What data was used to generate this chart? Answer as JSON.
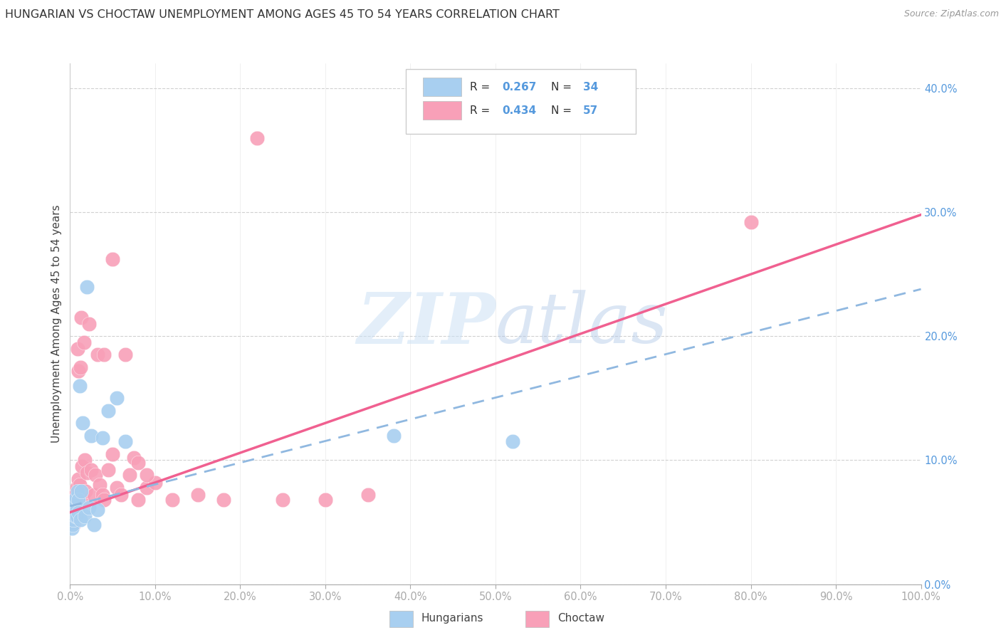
{
  "title": "HUNGARIAN VS CHOCTAW UNEMPLOYMENT AMONG AGES 45 TO 54 YEARS CORRELATION CHART",
  "source": "Source: ZipAtlas.com",
  "ylabel": "Unemployment Among Ages 45 to 54 years",
  "xlim": [
    0,
    1.0
  ],
  "ylim": [
    0,
    0.42
  ],
  "xticks": [
    0.0,
    0.1,
    0.2,
    0.3,
    0.4,
    0.5,
    0.6,
    0.7,
    0.8,
    0.9,
    1.0
  ],
  "yticks": [
    0.0,
    0.1,
    0.2,
    0.3,
    0.4
  ],
  "hungarian_R": 0.267,
  "hungarian_N": 34,
  "choctaw_R": 0.434,
  "choctaw_N": 57,
  "hungarian_color": "#a8cff0",
  "choctaw_color": "#f8a0b8",
  "hungarian_line_color": "#90b8e0",
  "choctaw_line_color": "#f06090",
  "background_color": "#ffffff",
  "watermark_zip": "ZIP",
  "watermark_atlas": "atlas",
  "hungarian_x": [
    0.001,
    0.002,
    0.002,
    0.003,
    0.003,
    0.004,
    0.004,
    0.005,
    0.005,
    0.006,
    0.006,
    0.007,
    0.007,
    0.008,
    0.008,
    0.009,
    0.01,
    0.01,
    0.011,
    0.012,
    0.013,
    0.015,
    0.017,
    0.02,
    0.022,
    0.025,
    0.028,
    0.032,
    0.038,
    0.045,
    0.055,
    0.065,
    0.38,
    0.52
  ],
  "hungarian_y": [
    0.05,
    0.045,
    0.055,
    0.048,
    0.058,
    0.052,
    0.062,
    0.056,
    0.066,
    0.06,
    0.055,
    0.065,
    0.07,
    0.06,
    0.055,
    0.075,
    0.068,
    0.058,
    0.16,
    0.052,
    0.075,
    0.13,
    0.055,
    0.24,
    0.062,
    0.12,
    0.048,
    0.06,
    0.118,
    0.14,
    0.15,
    0.115,
    0.12,
    0.115
  ],
  "choctaw_x": [
    0.001,
    0.002,
    0.002,
    0.003,
    0.003,
    0.004,
    0.004,
    0.005,
    0.005,
    0.006,
    0.006,
    0.007,
    0.007,
    0.008,
    0.008,
    0.009,
    0.01,
    0.01,
    0.011,
    0.012,
    0.013,
    0.014,
    0.015,
    0.016,
    0.017,
    0.018,
    0.02,
    0.022,
    0.025,
    0.028,
    0.03,
    0.032,
    0.035,
    0.038,
    0.04,
    0.045,
    0.05,
    0.055,
    0.06,
    0.065,
    0.07,
    0.075,
    0.08,
    0.09,
    0.1,
    0.12,
    0.15,
    0.18,
    0.22,
    0.25,
    0.3,
    0.35,
    0.08,
    0.09,
    0.04,
    0.05,
    0.8
  ],
  "choctaw_y": [
    0.06,
    0.05,
    0.065,
    0.055,
    0.07,
    0.048,
    0.06,
    0.055,
    0.065,
    0.058,
    0.072,
    0.062,
    0.055,
    0.068,
    0.078,
    0.19,
    0.085,
    0.172,
    0.08,
    0.175,
    0.215,
    0.095,
    0.068,
    0.195,
    0.1,
    0.075,
    0.09,
    0.21,
    0.092,
    0.072,
    0.088,
    0.185,
    0.08,
    0.072,
    0.185,
    0.092,
    0.105,
    0.078,
    0.072,
    0.185,
    0.088,
    0.102,
    0.098,
    0.078,
    0.082,
    0.068,
    0.072,
    0.068,
    0.36,
    0.068,
    0.068,
    0.072,
    0.068,
    0.088,
    0.068,
    0.262,
    0.292
  ],
  "hung_line_x0": 0.0,
  "hung_line_y0": 0.063,
  "hung_line_x1": 1.0,
  "hung_line_y1": 0.238,
  "choc_line_x0": 0.0,
  "choc_line_y0": 0.058,
  "choc_line_x1": 1.0,
  "choc_line_y1": 0.298
}
